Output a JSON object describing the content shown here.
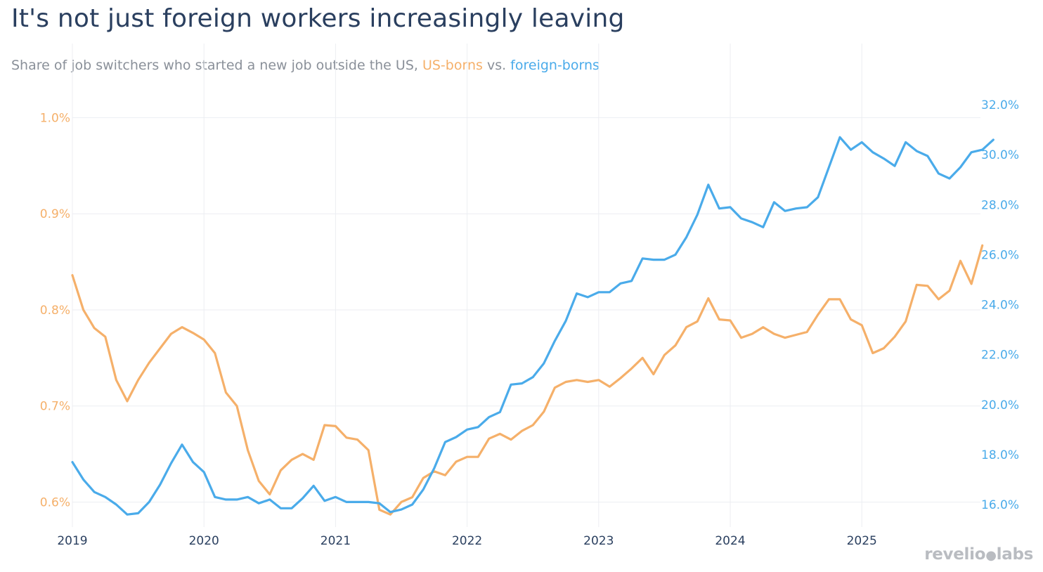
{
  "title": "It's not just foreign workers increasingly leaving",
  "subtitle": {
    "prefix": "Share of job switchers who started a new job outside the US, ",
    "us_label": "US-borns",
    "middle": " vs. ",
    "fb_label": "foreign-borns"
  },
  "logo": {
    "left": "revelio",
    "right": "labs"
  },
  "colors": {
    "us": "#f5b06a",
    "foreign": "#4aabea",
    "grid": "#eceef2",
    "axis_text": "#2a3f5f"
  },
  "chart_data": {
    "type": "line",
    "x_tick_labels": [
      "2019",
      "2020",
      "2021",
      "2022",
      "2023",
      "2024",
      "2025"
    ],
    "x_start": 2019.0,
    "x_step": 0.08333,
    "left_axis": {
      "ticks": [
        0.6,
        0.7,
        0.8,
        0.9,
        1.0
      ],
      "tick_labels": [
        "0.6%",
        "0.7%",
        "0.8%",
        "0.9%",
        "1.0%"
      ],
      "range": [
        0.574,
        1.042
      ]
    },
    "right_axis": {
      "ticks": [
        16,
        18,
        20,
        22,
        24,
        26,
        28,
        30,
        32
      ],
      "tick_labels": [
        "16.0%",
        "18.0%",
        "20.0%",
        "22.0%",
        "24.0%",
        "26.0%",
        "28.0%",
        "30.0%",
        "32.0%"
      ],
      "range": [
        15.1,
        33.1
      ]
    },
    "series": [
      {
        "name": "US-borns",
        "axis": "left",
        "unit": "%",
        "values": [
          0.836,
          0.8,
          0.781,
          0.772,
          0.727,
          0.705,
          0.727,
          0.745,
          0.76,
          0.775,
          0.782,
          0.776,
          0.769,
          0.755,
          0.714,
          0.7,
          0.654,
          0.622,
          0.608,
          0.633,
          0.644,
          0.65,
          0.644,
          0.68,
          0.679,
          0.667,
          0.665,
          0.654,
          0.592,
          0.587,
          0.6,
          0.605,
          0.625,
          0.632,
          0.628,
          0.642,
          0.647,
          0.647,
          0.666,
          0.671,
          0.665,
          0.674,
          0.68,
          0.694,
          0.719,
          0.725,
          0.727,
          0.725,
          0.727,
          0.72,
          0.729,
          0.739,
          0.75,
          0.733,
          0.753,
          0.763,
          0.782,
          0.788,
          0.812,
          0.79,
          0.789,
          0.771,
          0.775,
          0.782,
          0.775,
          0.771,
          0.774,
          0.777,
          0.795,
          0.811,
          0.811,
          0.79,
          0.784,
          0.755,
          0.76,
          0.772,
          0.788,
          0.826,
          0.825,
          0.811,
          0.82,
          0.851,
          0.827,
          0.867
        ]
      },
      {
        "name": "foreign-borns",
        "axis": "right",
        "unit": "%",
        "values": [
          17.7,
          17.0,
          16.5,
          16.3,
          16.0,
          15.6,
          15.65,
          16.1,
          16.8,
          17.65,
          18.4,
          17.7,
          17.3,
          16.3,
          16.2,
          16.2,
          16.3,
          16.05,
          16.2,
          15.85,
          15.85,
          16.25,
          16.75,
          16.15,
          16.3,
          16.1,
          16.1,
          16.1,
          16.05,
          15.7,
          15.8,
          16.0,
          16.6,
          17.45,
          18.5,
          18.7,
          19.0,
          19.1,
          19.5,
          19.7,
          20.8,
          20.85,
          21.1,
          21.65,
          22.55,
          23.35,
          24.45,
          24.3,
          24.5,
          24.5,
          24.85,
          24.95,
          25.85,
          25.8,
          25.8,
          26.0,
          26.7,
          27.6,
          28.8,
          27.85,
          27.9,
          27.45,
          27.3,
          27.1,
          28.1,
          27.75,
          27.85,
          27.9,
          28.3,
          29.5,
          30.7,
          30.2,
          30.5,
          30.1,
          29.85,
          29.55,
          30.5,
          30.15,
          29.95,
          29.25,
          29.05,
          29.5,
          30.1,
          30.2,
          30.6
        ]
      }
    ]
  }
}
